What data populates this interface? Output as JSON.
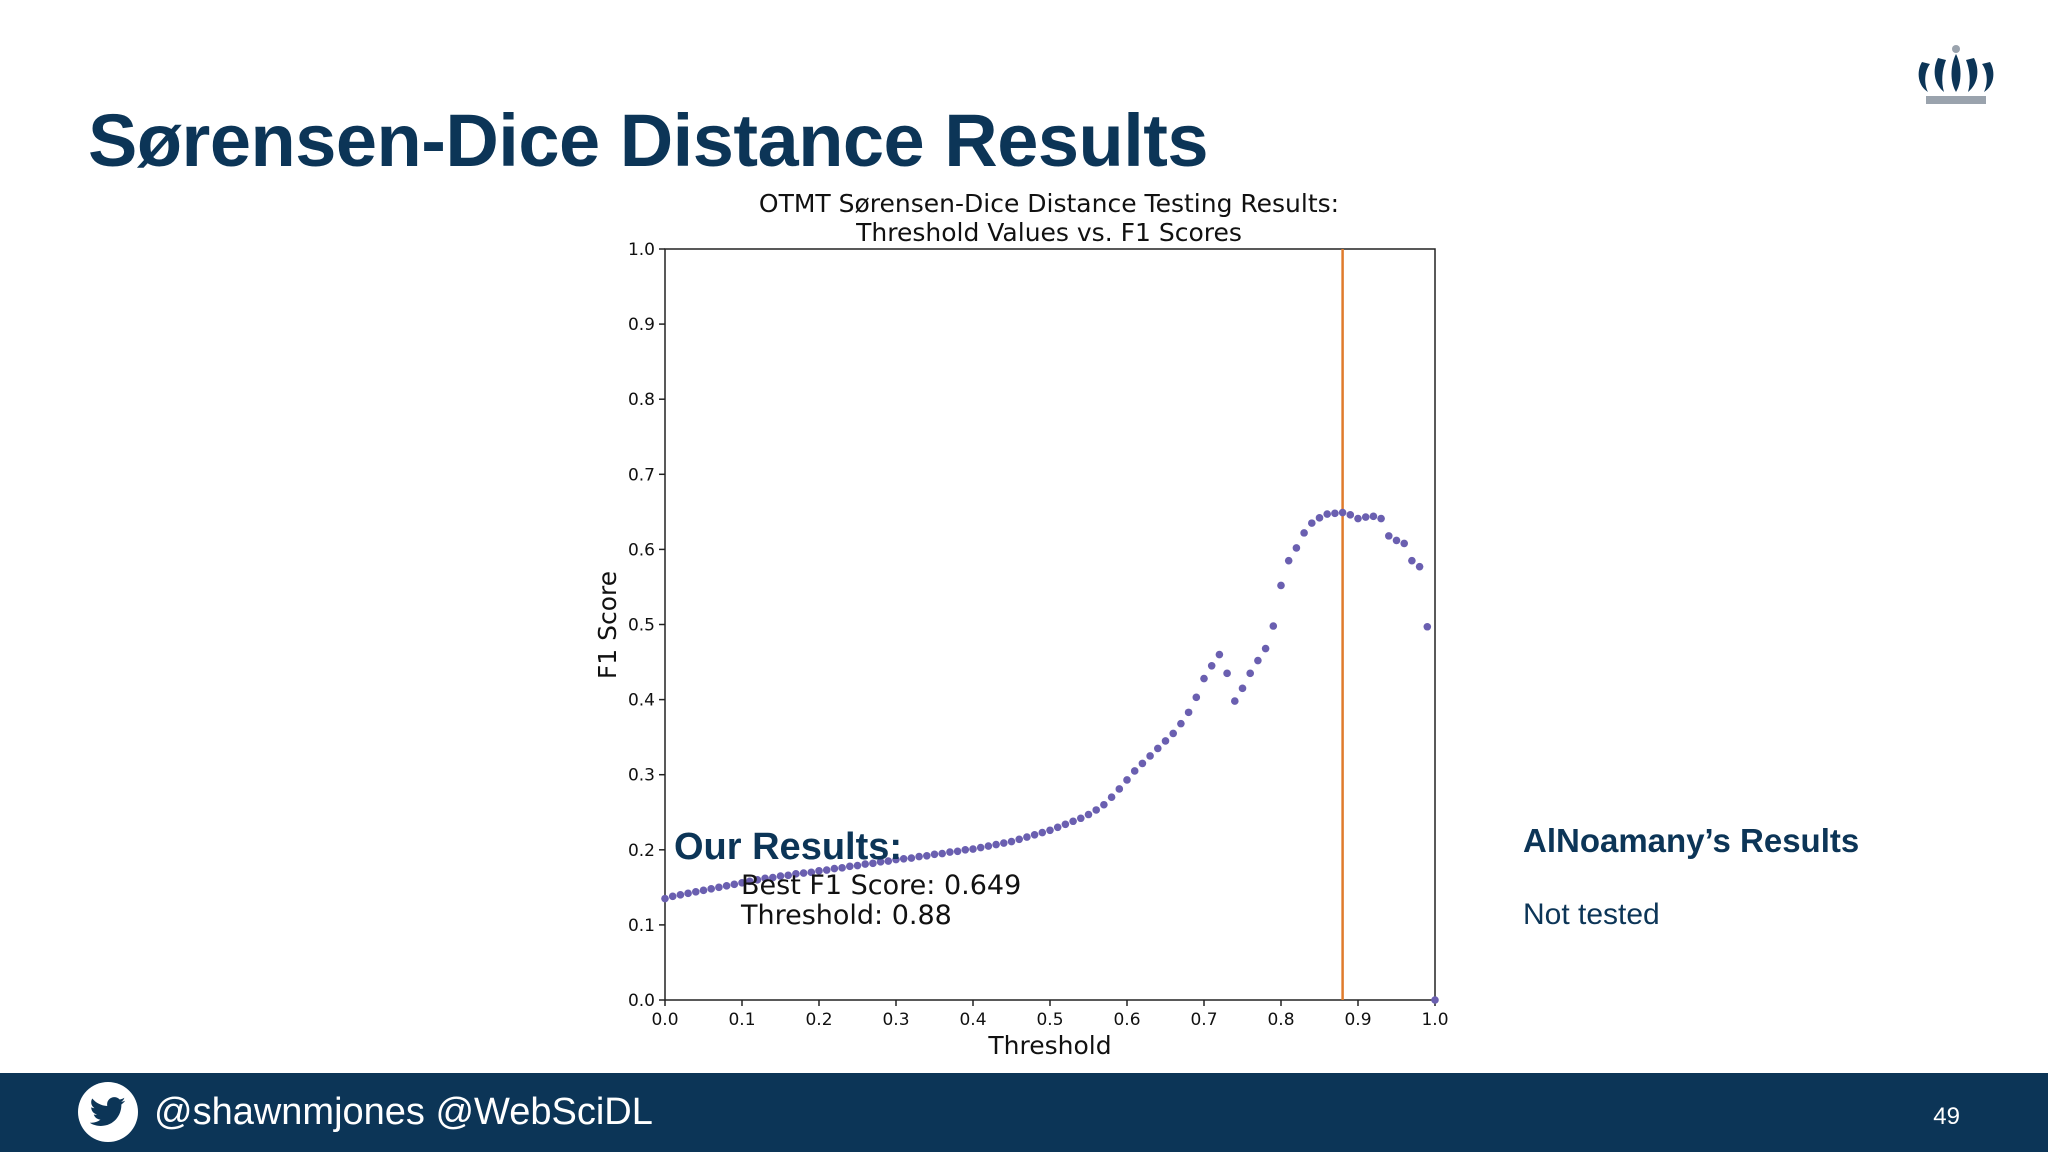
{
  "slide": {
    "title": "Sørensen-Dice Distance Results",
    "page_number": "49",
    "footer_handles": "@shawnmjones @WebSciDL"
  },
  "side_panel": {
    "heading": "AlNoamany’s Results",
    "body": "Not tested"
  },
  "colors": {
    "brand": "#0c3557",
    "points": "#6a5fb0",
    "threshold_line": "#e07b2c"
  },
  "icons": {
    "logo": "crown-icon",
    "social": "twitter-bird-icon"
  },
  "chart_data": {
    "type": "scatter",
    "title_lines": [
      "OTMT Sørensen-Dice Distance Testing Results:",
      "Threshold Values vs. F1 Scores"
    ],
    "xlabel": "Threshold",
    "ylabel": "F1 Score",
    "xlim": [
      0.0,
      1.0
    ],
    "ylim": [
      0.0,
      1.0
    ],
    "xticks": [
      "0.0",
      "0.1",
      "0.2",
      "0.3",
      "0.4",
      "0.5",
      "0.6",
      "0.7",
      "0.8",
      "0.9",
      "1.0"
    ],
    "yticks": [
      "0.0",
      "0.1",
      "0.2",
      "0.3",
      "0.4",
      "0.5",
      "0.6",
      "0.7",
      "0.8",
      "0.9",
      "1.0"
    ],
    "grid": false,
    "vline": 0.88,
    "x": [
      0.0,
      0.01,
      0.02,
      0.03,
      0.04,
      0.05,
      0.06,
      0.07,
      0.08,
      0.09,
      0.1,
      0.11,
      0.12,
      0.13,
      0.14,
      0.15,
      0.16,
      0.17,
      0.18,
      0.19,
      0.2,
      0.21,
      0.22,
      0.23,
      0.24,
      0.25,
      0.26,
      0.27,
      0.28,
      0.29,
      0.3,
      0.31,
      0.32,
      0.33,
      0.34,
      0.35,
      0.36,
      0.37,
      0.38,
      0.39,
      0.4,
      0.41,
      0.42,
      0.43,
      0.44,
      0.45,
      0.46,
      0.47,
      0.48,
      0.49,
      0.5,
      0.51,
      0.52,
      0.53,
      0.54,
      0.55,
      0.56,
      0.57,
      0.58,
      0.59,
      0.6,
      0.61,
      0.62,
      0.63,
      0.64,
      0.65,
      0.66,
      0.67,
      0.68,
      0.69,
      0.7,
      0.71,
      0.72,
      0.73,
      0.74,
      0.75,
      0.76,
      0.77,
      0.78,
      0.79,
      0.8,
      0.81,
      0.82,
      0.83,
      0.84,
      0.85,
      0.86,
      0.87,
      0.88,
      0.89,
      0.9,
      0.91,
      0.92,
      0.93,
      0.94,
      0.95,
      0.96,
      0.97,
      0.98,
      0.99,
      1.0
    ],
    "y": [
      0.135,
      0.138,
      0.14,
      0.142,
      0.144,
      0.146,
      0.148,
      0.15,
      0.152,
      0.154,
      0.156,
      0.158,
      0.16,
      0.162,
      0.163,
      0.165,
      0.166,
      0.168,
      0.169,
      0.17,
      0.172,
      0.173,
      0.175,
      0.176,
      0.178,
      0.179,
      0.181,
      0.182,
      0.184,
      0.185,
      0.187,
      0.188,
      0.189,
      0.191,
      0.192,
      0.194,
      0.195,
      0.197,
      0.198,
      0.2,
      0.201,
      0.203,
      0.205,
      0.207,
      0.209,
      0.211,
      0.214,
      0.217,
      0.22,
      0.223,
      0.226,
      0.23,
      0.234,
      0.238,
      0.242,
      0.247,
      0.253,
      0.26,
      0.27,
      0.281,
      0.293,
      0.305,
      0.315,
      0.325,
      0.335,
      0.345,
      0.355,
      0.368,
      0.383,
      0.403,
      0.428,
      0.445,
      0.46,
      0.435,
      0.398,
      0.415,
      0.435,
      0.452,
      0.468,
      0.498,
      0.552,
      0.585,
      0.602,
      0.622,
      0.635,
      0.642,
      0.647,
      0.648,
      0.649,
      0.646,
      0.641,
      0.643,
      0.644,
      0.641,
      0.618,
      0.612,
      0.608,
      0.585,
      0.577,
      0.497,
      0.0
    ],
    "annotation": {
      "heading": "Our Results:",
      "lines": [
        "Best F1 Score: 0.649",
        "Threshold: 0.88"
      ]
    }
  }
}
